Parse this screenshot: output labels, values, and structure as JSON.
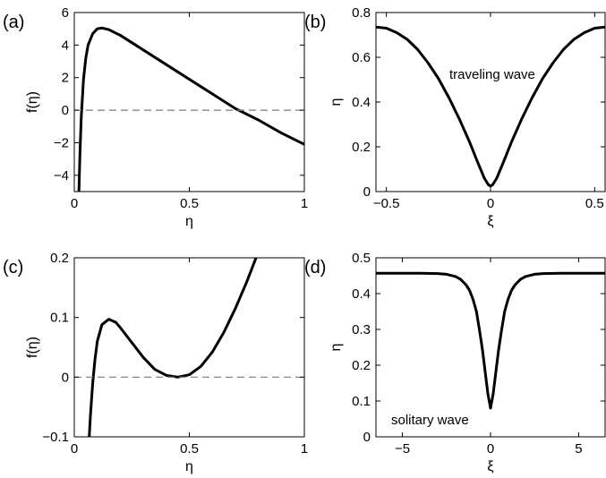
{
  "chart_data": [
    {
      "type": "line",
      "panel_label": "(a)",
      "xlabel": "η",
      "ylabel": "f(η)",
      "xlim": [
        0,
        1
      ],
      "ylim": [
        -5,
        6
      ],
      "xticks": [
        0,
        0.5,
        1
      ],
      "xtick_labels": [
        "0",
        "0.5",
        "1"
      ],
      "yticks": [
        -4,
        -2,
        0,
        2,
        4,
        6
      ],
      "ytick_labels": [
        "−4",
        "−2",
        "0",
        "2",
        "4",
        "6"
      ],
      "annotation": "",
      "series": [
        {
          "style": "solid",
          "x": [
            0.02,
            0.025,
            0.03,
            0.04,
            0.05,
            0.06,
            0.08,
            0.1,
            0.12,
            0.15,
            0.2,
            0.3,
            0.4,
            0.5,
            0.6,
            0.7,
            0.8,
            0.9,
            1.0
          ],
          "y": [
            -5.0,
            -2.5,
            -0.5,
            1.9,
            3.2,
            4.0,
            4.7,
            5.0,
            5.05,
            4.95,
            4.6,
            3.7,
            2.8,
            1.9,
            1.0,
            0.1,
            -0.6,
            -1.4,
            -2.1
          ]
        },
        {
          "style": "dashed",
          "x": [
            0,
            1
          ],
          "y": [
            0,
            0
          ]
        }
      ]
    },
    {
      "type": "line",
      "panel_label": "(b)",
      "xlabel": "ξ",
      "ylabel": "η",
      "xlim": [
        -0.55,
        0.55
      ],
      "ylim": [
        0,
        0.8
      ],
      "xticks": [
        -0.5,
        0,
        0.5
      ],
      "xtick_labels": [
        "−0.5",
        "0",
        "0.5"
      ],
      "yticks": [
        0,
        0.2,
        0.4,
        0.6,
        0.8
      ],
      "ytick_labels": [
        "0",
        "0.2",
        "0.4",
        "0.6",
        "0.8"
      ],
      "annotation": "traveling wave",
      "series": [
        {
          "style": "solid",
          "x": [
            -0.55,
            -0.5,
            -0.45,
            -0.4,
            -0.35,
            -0.3,
            -0.25,
            -0.2,
            -0.15,
            -0.1,
            -0.07,
            -0.05,
            -0.03,
            -0.01,
            0,
            0.01,
            0.03,
            0.05,
            0.07,
            0.1,
            0.15,
            0.2,
            0.25,
            0.3,
            0.35,
            0.4,
            0.45,
            0.5,
            0.55
          ],
          "y": [
            0.735,
            0.73,
            0.71,
            0.68,
            0.635,
            0.575,
            0.505,
            0.42,
            0.325,
            0.22,
            0.15,
            0.105,
            0.06,
            0.03,
            0.025,
            0.03,
            0.06,
            0.105,
            0.15,
            0.22,
            0.325,
            0.42,
            0.505,
            0.575,
            0.635,
            0.68,
            0.71,
            0.73,
            0.735
          ]
        }
      ]
    },
    {
      "type": "line",
      "panel_label": "(c)",
      "xlabel": "η",
      "ylabel": "f(η)",
      "xlim": [
        0,
        1
      ],
      "ylim": [
        -0.1,
        0.2
      ],
      "xticks": [
        0,
        0.5,
        1
      ],
      "xtick_labels": [
        "0",
        "0.5",
        "1"
      ],
      "yticks": [
        -0.1,
        0,
        0.1,
        0.2
      ],
      "ytick_labels": [
        "−0.1",
        "0",
        "0.1",
        "0.2"
      ],
      "annotation": "",
      "series": [
        {
          "style": "solid",
          "x": [
            0.065,
            0.07,
            0.08,
            0.09,
            0.1,
            0.12,
            0.15,
            0.18,
            0.2,
            0.25,
            0.3,
            0.35,
            0.4,
            0.45,
            0.5,
            0.55,
            0.6,
            0.65,
            0.7,
            0.75,
            0.79
          ],
          "y": [
            -0.1,
            -0.065,
            -0.01,
            0.03,
            0.06,
            0.088,
            0.097,
            0.092,
            0.083,
            0.058,
            0.033,
            0.013,
            0.003,
            0.0,
            0.004,
            0.018,
            0.042,
            0.075,
            0.115,
            0.16,
            0.2
          ]
        },
        {
          "style": "dashed",
          "x": [
            0,
            1
          ],
          "y": [
            0,
            0
          ]
        }
      ]
    },
    {
      "type": "line",
      "panel_label": "(d)",
      "xlabel": "ξ",
      "ylabel": "η",
      "xlim": [
        -6.5,
        6.5
      ],
      "ylim": [
        0,
        0.5
      ],
      "xticks": [
        -5,
        0,
        5
      ],
      "xtick_labels": [
        "−5",
        "0",
        "5"
      ],
      "yticks": [
        0,
        0.1,
        0.2,
        0.3,
        0.4,
        0.5
      ],
      "ytick_labels": [
        "0",
        "0.1",
        "0.2",
        "0.3",
        "0.4",
        "0.5"
      ],
      "annotation": "solitary wave",
      "series": [
        {
          "style": "solid",
          "x": [
            -6.5,
            -4,
            -3,
            -2.5,
            -2,
            -1.7,
            -1.4,
            -1.2,
            -1.0,
            -0.8,
            -0.6,
            -0.45,
            -0.3,
            -0.15,
            0,
            0.15,
            0.3,
            0.45,
            0.6,
            0.8,
            1.0,
            1.2,
            1.4,
            1.7,
            2,
            2.5,
            3,
            4,
            6.5
          ],
          "y": [
            0.457,
            0.457,
            0.456,
            0.454,
            0.448,
            0.44,
            0.425,
            0.41,
            0.385,
            0.35,
            0.29,
            0.24,
            0.18,
            0.12,
            0.08,
            0.12,
            0.18,
            0.24,
            0.29,
            0.35,
            0.385,
            0.41,
            0.425,
            0.44,
            0.448,
            0.454,
            0.456,
            0.457,
            0.457
          ]
        }
      ]
    }
  ]
}
